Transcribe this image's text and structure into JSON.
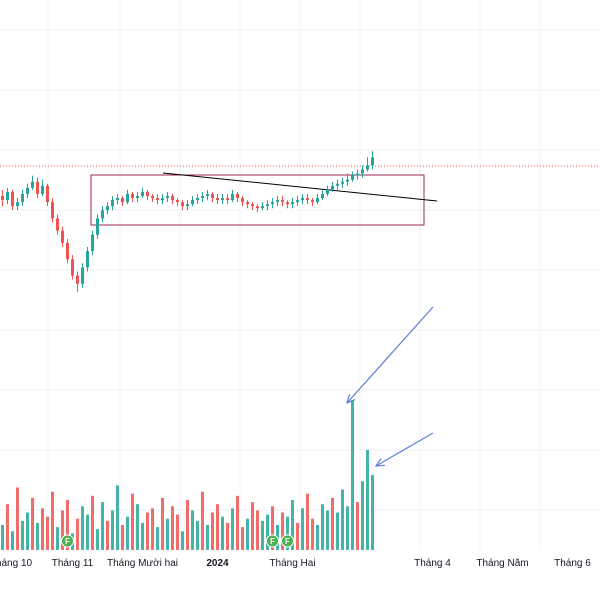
{
  "colors": {
    "up": "#26a69a",
    "down": "#ef5350",
    "up_volume": "#26a69a",
    "down_volume": "#ef5350",
    "grid": "#f0f3fa",
    "price_line": "#ef5350",
    "range_box": "#9c2755",
    "trendline": "#000000",
    "arrow": "#5b7fd6",
    "event_marker": "#4caf50",
    "axis_text": "#131722"
  },
  "icons": {
    "event_marker": "F-circle-marker-icon"
  },
  "chart_data": {
    "type": "candlestick",
    "title": "",
    "x_axis": {
      "tick_labels": [
        "háng 10",
        "Tháng 11",
        "Tháng Mười hai",
        "2024",
        "Tháng Hai",
        "Tháng 4",
        "Tháng Năm",
        "Tháng 6"
      ],
      "bold_ticks": [
        "2024"
      ],
      "bar_index_of_ticks": [
        0,
        14,
        28,
        43,
        58,
        86,
        100,
        114
      ]
    },
    "grid": true,
    "price_line_visible": true,
    "event_marker_text": "F",
    "event_markers_bar_index": [
      13,
      54,
      57
    ],
    "annotations": {
      "range_box": true,
      "trendline": true,
      "arrows": 2
    },
    "candles": {
      "open": [
        23.55,
        23.45,
        23.65,
        23.3,
        23.4,
        23.6,
        23.75,
        23.9,
        23.6,
        23.8,
        23.4,
        23.0,
        22.7,
        22.4,
        22.0,
        21.6,
        21.4,
        21.8,
        22.2,
        22.6,
        23.0,
        23.2,
        23.3,
        23.45,
        23.5,
        23.4,
        23.6,
        23.5,
        23.55,
        23.65,
        23.55,
        23.5,
        23.45,
        23.5,
        23.55,
        23.45,
        23.4,
        23.3,
        23.35,
        23.45,
        23.5,
        23.55,
        23.6,
        23.5,
        23.45,
        23.5,
        23.45,
        23.6,
        23.5,
        23.4,
        23.35,
        23.3,
        23.25,
        23.3,
        23.35,
        23.4,
        23.45,
        23.4,
        23.35,
        23.4,
        23.45,
        23.5,
        23.45,
        23.4,
        23.5,
        23.6,
        23.7,
        23.8,
        23.85,
        23.9,
        23.95,
        24.05,
        24.1,
        24.2,
        24.3
      ],
      "close": [
        23.45,
        23.65,
        23.3,
        23.4,
        23.6,
        23.75,
        23.9,
        23.6,
        23.8,
        23.4,
        23.0,
        22.7,
        22.4,
        22.0,
        21.6,
        21.4,
        21.8,
        22.2,
        22.6,
        23.0,
        23.2,
        23.3,
        23.45,
        23.5,
        23.4,
        23.6,
        23.5,
        23.55,
        23.65,
        23.55,
        23.5,
        23.45,
        23.5,
        23.55,
        23.45,
        23.4,
        23.3,
        23.35,
        23.45,
        23.5,
        23.55,
        23.6,
        23.5,
        23.45,
        23.5,
        23.45,
        23.6,
        23.5,
        23.4,
        23.35,
        23.3,
        23.25,
        23.3,
        23.35,
        23.4,
        23.45,
        23.4,
        23.35,
        23.4,
        23.45,
        23.5,
        23.45,
        23.4,
        23.5,
        23.6,
        23.7,
        23.8,
        23.85,
        23.9,
        23.95,
        24.05,
        24.1,
        24.2,
        24.3,
        24.5
      ],
      "high": [
        23.7,
        23.75,
        23.7,
        23.5,
        23.7,
        23.85,
        24.05,
        24.0,
        23.95,
        23.85,
        23.5,
        23.1,
        22.8,
        22.5,
        22.1,
        21.7,
        21.9,
        22.3,
        22.7,
        23.1,
        23.3,
        23.4,
        23.55,
        23.6,
        23.55,
        23.7,
        23.65,
        23.65,
        23.75,
        23.7,
        23.6,
        23.6,
        23.6,
        23.65,
        23.6,
        23.5,
        23.45,
        23.45,
        23.55,
        23.6,
        23.65,
        23.7,
        23.65,
        23.6,
        23.6,
        23.6,
        23.7,
        23.65,
        23.55,
        23.45,
        23.4,
        23.35,
        23.4,
        23.45,
        23.5,
        23.55,
        23.55,
        23.45,
        23.5,
        23.55,
        23.6,
        23.6,
        23.5,
        23.6,
        23.7,
        23.8,
        23.9,
        23.95,
        24.0,
        24.1,
        24.15,
        24.2,
        24.3,
        24.5,
        24.65
      ],
      "low": [
        23.3,
        23.35,
        23.2,
        23.2,
        23.3,
        23.5,
        23.7,
        23.5,
        23.55,
        23.3,
        22.9,
        22.6,
        22.3,
        21.9,
        21.5,
        21.2,
        21.3,
        21.7,
        22.1,
        22.5,
        22.9,
        23.1,
        23.2,
        23.35,
        23.3,
        23.35,
        23.4,
        23.4,
        23.5,
        23.45,
        23.4,
        23.35,
        23.35,
        23.4,
        23.35,
        23.3,
        23.2,
        23.2,
        23.3,
        23.35,
        23.4,
        23.45,
        23.4,
        23.35,
        23.35,
        23.35,
        23.4,
        23.4,
        23.3,
        23.25,
        23.2,
        23.15,
        23.2,
        23.2,
        23.25,
        23.3,
        23.3,
        23.25,
        23.25,
        23.3,
        23.35,
        23.35,
        23.3,
        23.35,
        23.45,
        23.55,
        23.65,
        23.7,
        23.75,
        23.8,
        23.9,
        23.95,
        24.0,
        24.15,
        24.2
      ]
    },
    "volume": [
      12,
      22,
      9,
      30,
      14,
      18,
      25,
      13,
      20,
      16,
      28,
      11,
      19,
      24,
      8,
      15,
      21,
      17,
      26,
      10,
      23,
      14,
      19,
      31,
      12,
      16,
      27,
      22,
      13,
      18,
      20,
      11,
      25,
      15,
      21,
      17,
      9,
      24,
      19,
      14,
      28,
      12,
      18,
      22,
      16,
      13,
      20,
      26,
      11,
      15,
      23,
      19,
      14,
      17,
      21,
      12,
      18,
      16,
      24,
      13,
      20,
      27,
      15,
      12,
      22,
      19,
      25,
      18,
      29,
      21,
      72,
      23,
      33,
      48,
      36
    ],
    "volume_up": [
      true,
      false,
      true,
      false,
      true,
      true,
      false,
      true,
      false,
      false,
      false,
      true,
      false,
      false,
      true,
      false,
      true,
      true,
      false,
      true,
      true,
      false,
      true,
      true,
      false,
      true,
      false,
      true,
      true,
      false,
      false,
      true,
      false,
      true,
      false,
      false,
      true,
      false,
      true,
      true,
      false,
      true,
      false,
      false,
      true,
      false,
      true,
      false,
      false,
      true,
      false,
      false,
      true,
      true,
      false,
      true,
      false,
      true,
      true,
      false,
      true,
      false,
      false,
      true,
      true,
      true,
      false,
      true,
      true,
      true,
      true,
      false,
      true,
      true,
      true
    ]
  }
}
